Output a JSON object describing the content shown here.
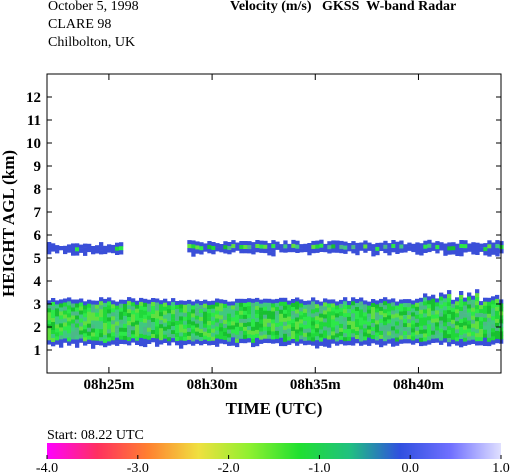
{
  "header": {
    "date": "October 5, 1998",
    "campaign": "CLARE 98",
    "location": "Chilbolton, UK",
    "title": "Velocity (m/s)   GKSS  W-band Radar"
  },
  "chart_data": {
    "type": "heatmap",
    "title": "Velocity (m/s)   GKSS  W-band Radar",
    "xlabel": "TIME (UTC)",
    "ylabel": "HEIGHT AGL (km)",
    "xlim": [
      "08h22m",
      "08h44m"
    ],
    "ylim": [
      0,
      13
    ],
    "x_ticks": [
      "08h25m",
      "08h30m",
      "08h35m",
      "08h40m"
    ],
    "y_ticks": [
      1,
      2,
      3,
      4,
      5,
      6,
      7,
      8,
      9,
      10,
      11,
      12
    ],
    "start_label": "Start: 08.22 UTC",
    "colorbar": {
      "range": [
        -4.0,
        1.0
      ],
      "ticks": [
        "-4.0",
        "-3.0",
        "-2.0",
        "-1.0",
        "0.0",
        "1.0"
      ],
      "colors": [
        "#ff00ff",
        "#ff3060",
        "#ff8030",
        "#f0e040",
        "#90f030",
        "#20e030",
        "#20c080",
        "#3050e0",
        "#7070ff",
        "#e0e0ff"
      ]
    },
    "layers": [
      {
        "name_hint": "lower cloud",
        "start_min": 0.0,
        "end_min": 22.0,
        "base_km": 1.3,
        "top_km": 3.2,
        "dominant_velocity": -1.0
      },
      {
        "name_hint": "upper cloud segment 1",
        "start_min": 0.0,
        "end_min": 3.5,
        "base_km": 5.3,
        "top_km": 5.6,
        "dominant_velocity": -1.0
      },
      {
        "name_hint": "upper cloud segment 2",
        "start_min": 6.8,
        "end_min": 22.0,
        "base_km": 5.3,
        "top_km": 5.7,
        "dominant_velocity": -1.0
      }
    ]
  }
}
